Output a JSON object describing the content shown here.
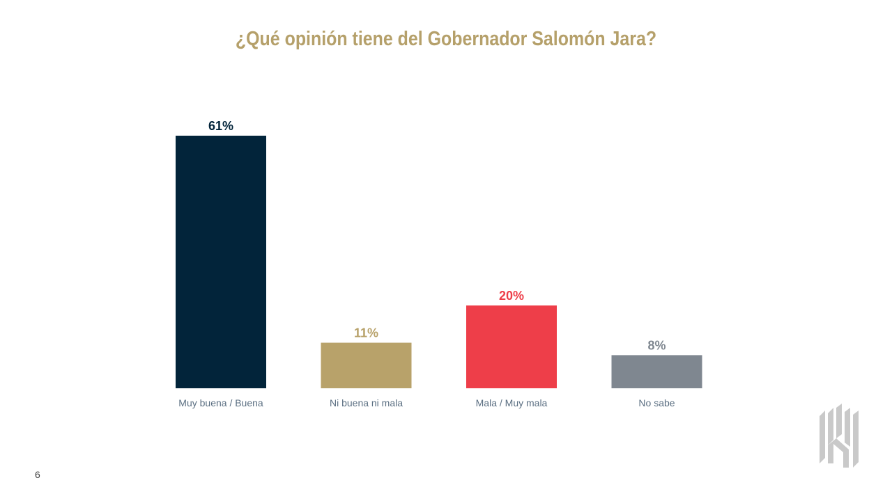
{
  "page": {
    "number": "6"
  },
  "colors": {
    "title": "#b5a06a",
    "axis_labels": "#5b6f82"
  },
  "chart_data": {
    "type": "bar",
    "title": "¿Qué opinión tiene del Gobernador Salomón Jara?",
    "categories": [
      "Muy buena / Buena",
      "Ni buena ni mala",
      "Mala / Muy mala",
      "No sabe"
    ],
    "values": [
      61,
      11,
      20,
      8
    ],
    "value_labels": [
      "61%",
      "11%",
      "20%",
      "8%"
    ],
    "colors": [
      "#02243a",
      "#b8a26a",
      "#ee3e49",
      "#7f8790"
    ],
    "label_colors": [
      "#02243a",
      "#b8a26a",
      "#ee3e49",
      "#7f8790"
    ],
    "xlabel": "",
    "ylabel": "",
    "ylim": [
      0,
      61
    ],
    "grid": false,
    "legend": "none"
  },
  "logo": {
    "icon": "brand-logo-icon"
  }
}
